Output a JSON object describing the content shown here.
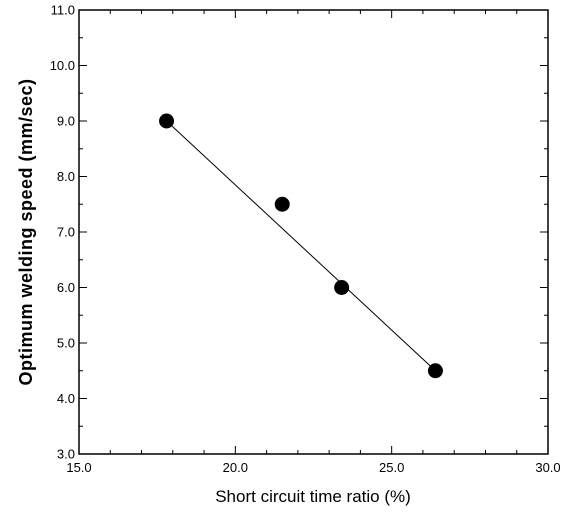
{
  "chart_data": {
    "type": "scatter",
    "title": "",
    "xlabel": "Short circuit time ratio (%)",
    "ylabel": "Optimum welding speed (mm/sec)",
    "xlim": [
      15.0,
      30.0
    ],
    "ylim": [
      3.0,
      11.0
    ],
    "x_ticks": [
      "15.0",
      "20.0",
      "25.0",
      "30.0"
    ],
    "y_ticks": [
      "3.0",
      "4.0",
      "5.0",
      "6.0",
      "7.0",
      "8.0",
      "9.0",
      "10.0",
      "11.0"
    ],
    "points": [
      {
        "x": 17.8,
        "y": 9.0
      },
      {
        "x": 21.5,
        "y": 7.5
      },
      {
        "x": 23.4,
        "y": 6.0
      },
      {
        "x": 26.4,
        "y": 4.5
      }
    ],
    "trend_line": {
      "from": {
        "x": 17.8,
        "y": 9.0
      },
      "to": {
        "x": 26.4,
        "y": 4.5
      }
    },
    "grid": false,
    "colors": {
      "marker": "#000000",
      "line": "#000000",
      "background": "#ffffff"
    }
  }
}
